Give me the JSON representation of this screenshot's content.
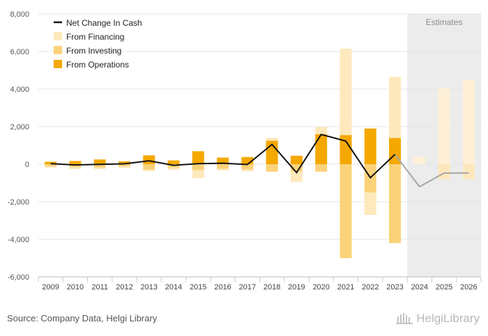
{
  "footer": {
    "source": "Source: Company Data, Helgi Library",
    "brand": "HelgiLibrary",
    "brand_icon": "library-building-icon"
  },
  "chart_data": {
    "type": "bar",
    "stacked": true,
    "categories": [
      "2009",
      "2010",
      "2011",
      "2012",
      "2013",
      "2014",
      "2015",
      "2016",
      "2017",
      "2018",
      "2019",
      "2020",
      "2021",
      "2022",
      "2023",
      "2024",
      "2025",
      "2026"
    ],
    "ylim": [
      -6000,
      8000
    ],
    "yticks": [
      -6000,
      -4000,
      -2000,
      0,
      2000,
      4000,
      6000,
      8000
    ],
    "ytick_labels": [
      "-6,000",
      "-4,000",
      "-2,000",
      "0",
      "2,000",
      "4,000",
      "6,000",
      "8,000"
    ],
    "grid": true,
    "legend_position": "top-left",
    "estimates_label": "Estimates",
    "estimates_start": "2024",
    "series": [
      {
        "name": "From Operations",
        "kind": "bar",
        "color": "#f5a800",
        "estimate_color": "#f9d98c",
        "values": [
          130,
          170,
          250,
          150,
          470,
          200,
          690,
          350,
          380,
          1250,
          450,
          1600,
          1550,
          1900,
          1400,
          null,
          null,
          null
        ]
      },
      {
        "name": "From Investing",
        "kind": "bar",
        "color": "#fbd27a",
        "estimate_color": "#fde8bd",
        "values": [
          -120,
          -160,
          -180,
          -120,
          -300,
          -180,
          -320,
          -250,
          -280,
          -400,
          -400,
          -400,
          -5000,
          -1500,
          -4200,
          null,
          -800,
          -800
        ]
      },
      {
        "name": "From Financing",
        "kind": "bar",
        "color": "#fde9bc",
        "estimate_color": "#fdf0d6",
        "values": [
          -60,
          -100,
          -80,
          -80,
          -60,
          -120,
          -420,
          -80,
          -100,
          150,
          -550,
          380,
          4600,
          -1200,
          3250,
          400,
          4050,
          4500
        ]
      },
      {
        "name": "Net Change In Cash",
        "kind": "line",
        "color": "#111111",
        "estimate_color": "#a6a6a6",
        "values": [
          30,
          -40,
          -10,
          20,
          180,
          -60,
          30,
          50,
          -20,
          1050,
          -450,
          1580,
          1230,
          -720,
          520,
          -1200,
          -470,
          -470
        ]
      }
    ],
    "legend": [
      "Net Change In Cash",
      "From Financing",
      "From Investing",
      "From Operations"
    ]
  }
}
